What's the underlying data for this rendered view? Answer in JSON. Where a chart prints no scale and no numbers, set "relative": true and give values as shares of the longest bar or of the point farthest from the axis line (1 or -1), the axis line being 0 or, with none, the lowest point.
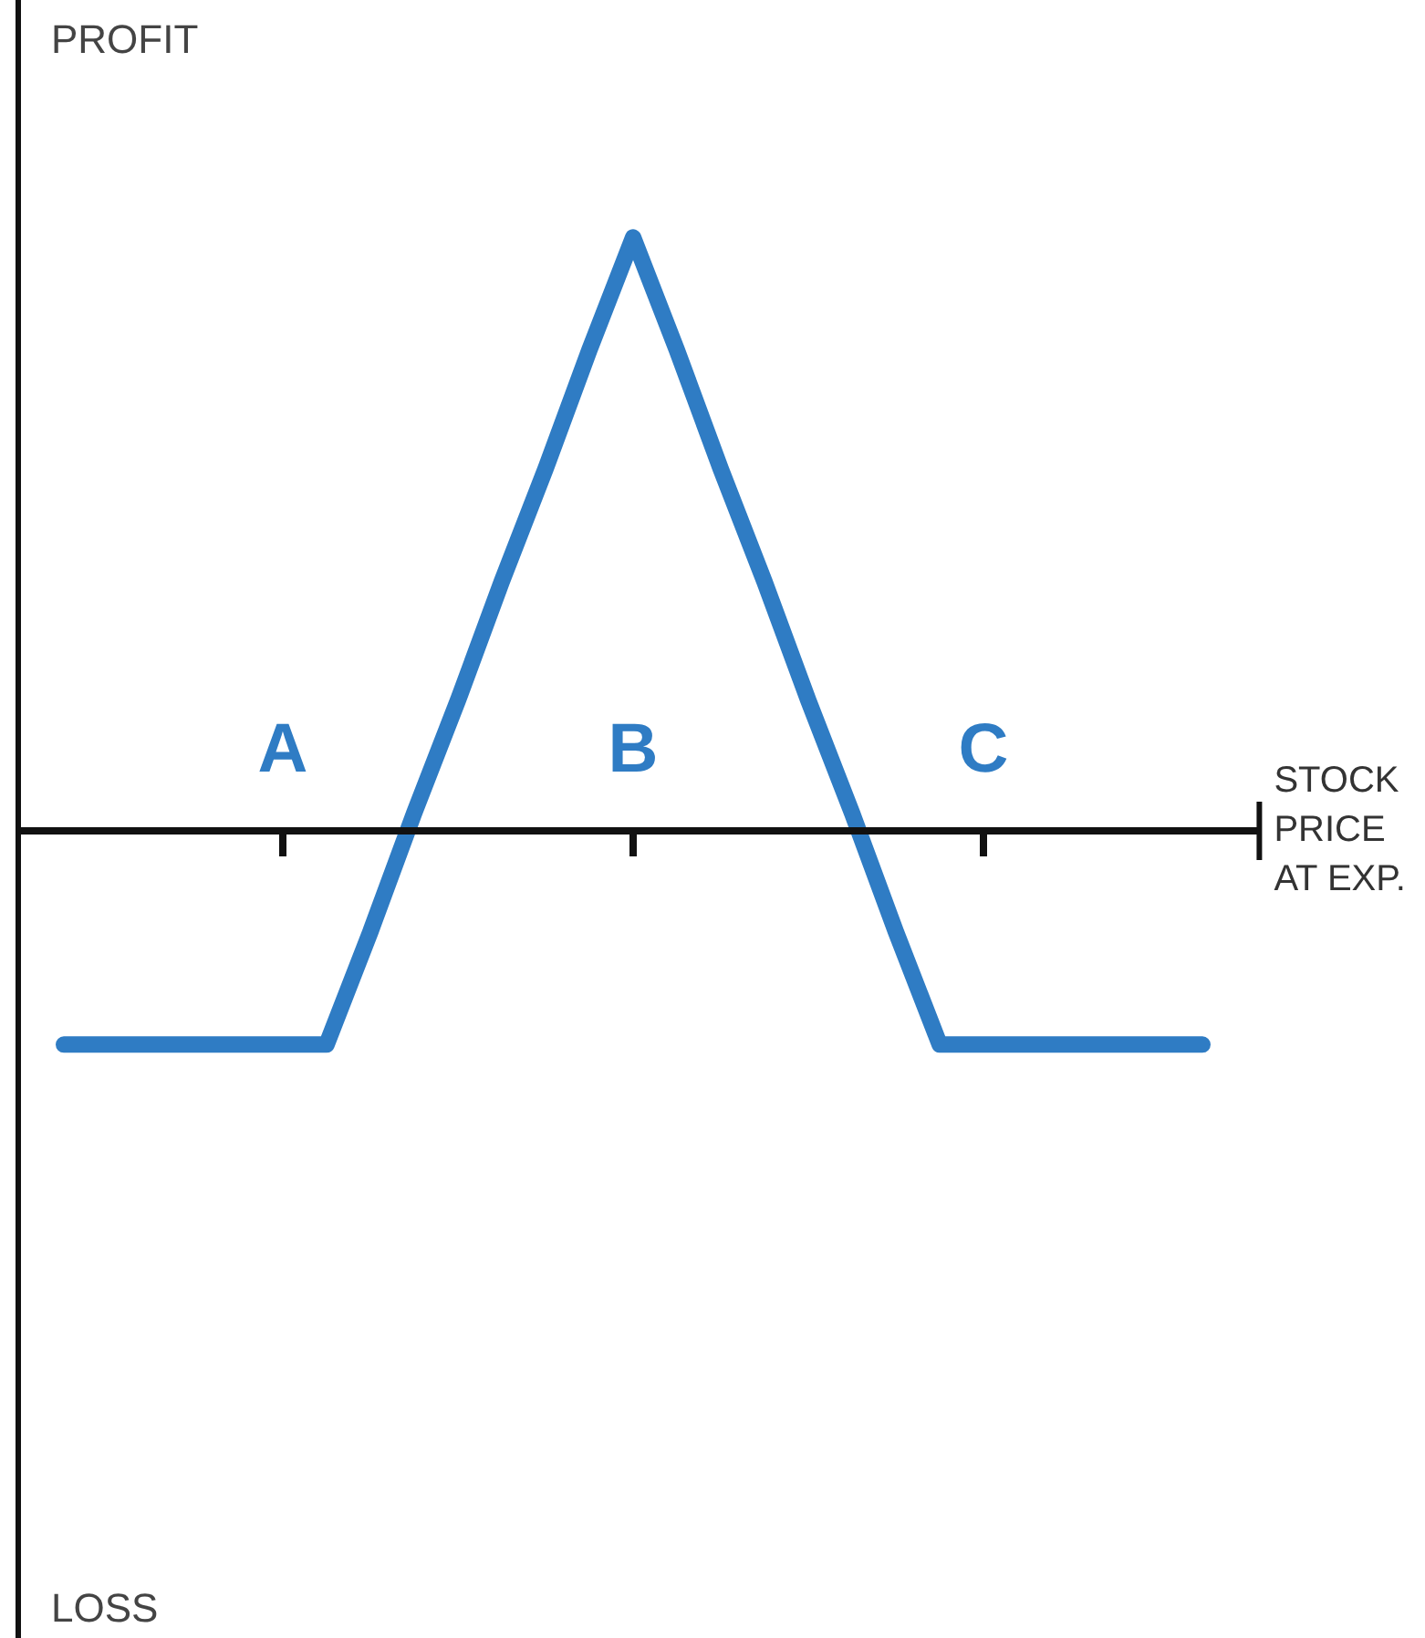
{
  "chart_data": {
    "type": "line",
    "relative": true,
    "xlabel": "STOCK PRICE AT EXP.",
    "annotations": [
      "PROFIT",
      "LOSS"
    ],
    "categories": [
      null,
      null,
      null,
      null,
      null,
      "A",
      null,
      null,
      null,
      null,
      null,
      null,
      null,
      "B",
      null,
      null,
      null,
      null,
      null,
      null,
      null,
      "C",
      null,
      null,
      null,
      null,
      null
    ],
    "series": [
      {
        "color": "#2f7cc4",
        "values": [
          -0.36,
          -0.36,
          -0.36,
          -0.36,
          -0.36,
          -0.36,
          -0.36,
          -0.17,
          0.03,
          0.22,
          0.42,
          0.61,
          0.81,
          1,
          0.81,
          0.61,
          0.42,
          0.22,
          0.03,
          -0.17,
          -0.36,
          -0.36,
          -0.36,
          -0.36,
          -0.36,
          -0.36,
          -0.36
        ]
      }
    ],
    "grid": false,
    "legend": false,
    "marker": "none",
    "line_style": "solid"
  }
}
